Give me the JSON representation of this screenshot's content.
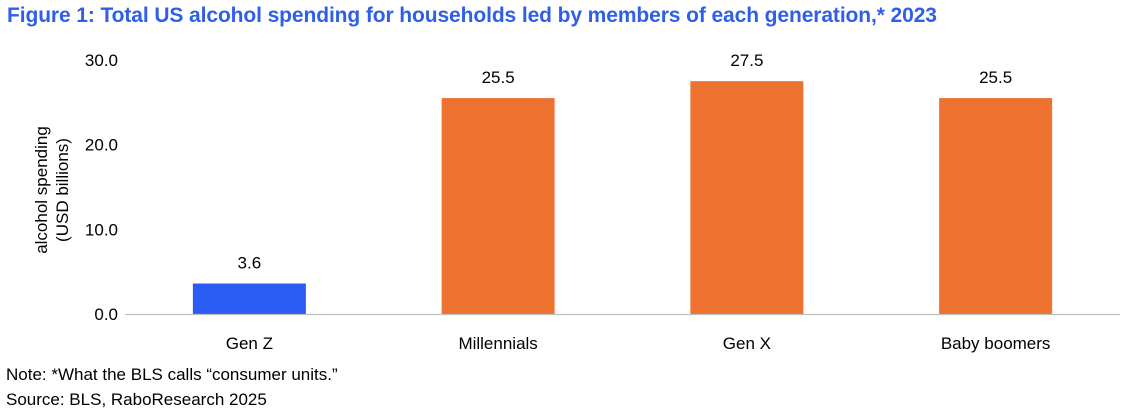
{
  "title": "Figure 1: Total US alcohol spending for households led by members of each generation,* 2023",
  "colors": {
    "title": "#2f5fe8",
    "highlight_bar": "#2a5cf3",
    "bar": "#ed7230",
    "axis": "#bfbfbf"
  },
  "chart_data": {
    "type": "bar",
    "categories": [
      "Gen Z",
      "Millennials",
      "Gen X",
      "Baby boomers"
    ],
    "values": [
      3.6,
      25.5,
      27.5,
      25.5
    ],
    "value_labels": [
      "3.6",
      "25.5",
      "27.5",
      "25.5"
    ],
    "highlight": [
      "Gen Z"
    ],
    "title": "",
    "xlabel": "",
    "ylabel_lines": [
      "alcohol spending",
      "(USD billions)"
    ],
    "ylim": [
      0,
      30
    ],
    "yticks": [
      0,
      10,
      20,
      30
    ],
    "ytick_labels": [
      "0.0",
      "10.0",
      "20.0",
      "30.0"
    ],
    "grid": false,
    "legend": "none"
  },
  "footer": {
    "note": "Note: *What the BLS calls “consumer units.”",
    "source": "Source: BLS, RaboResearch 2025"
  }
}
